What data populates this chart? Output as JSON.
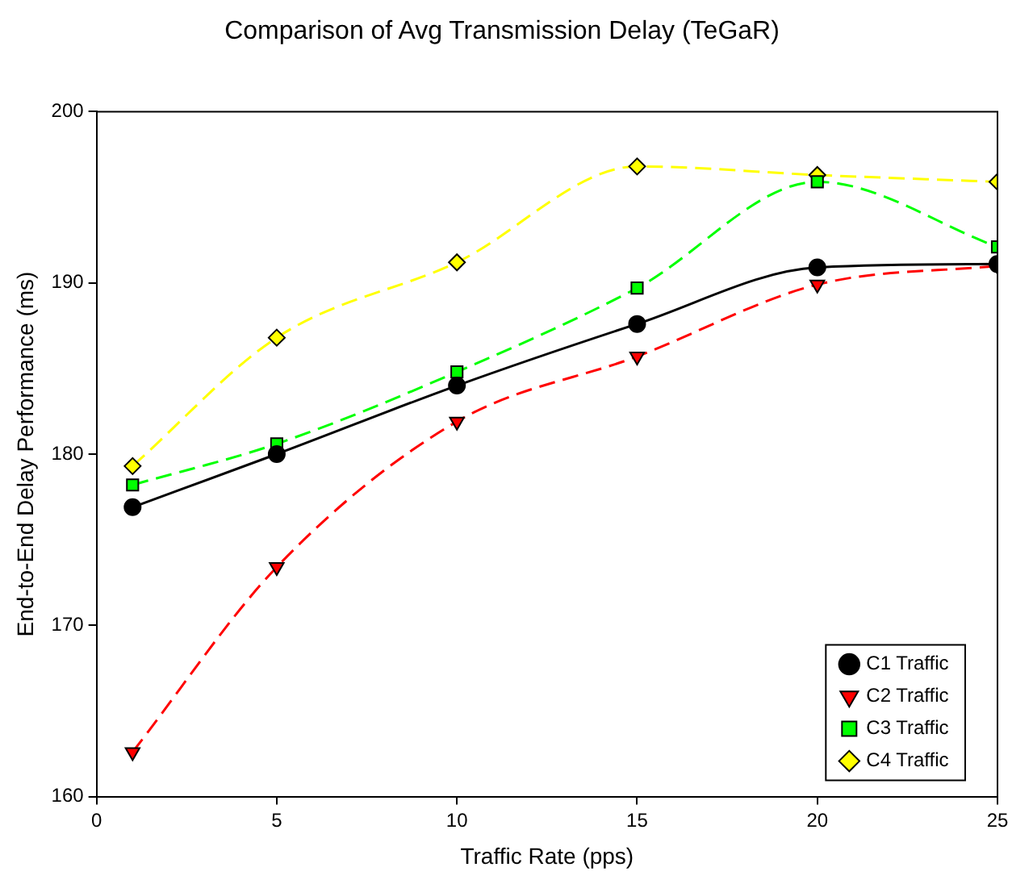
{
  "chart_data": {
    "type": "line",
    "title": "Comparison of Avg Transmission Delay (TeGaR)",
    "xlabel": "Traffic Rate (pps)",
    "ylabel": "End-to-End Delay Performance (ms)",
    "x": [
      1,
      5,
      10,
      15,
      20,
      25
    ],
    "xlim": [
      0,
      25
    ],
    "xticks": [
      0,
      5,
      10,
      15,
      20,
      25
    ],
    "ylim": [
      160,
      200
    ],
    "yticks": [
      160,
      170,
      180,
      190,
      200
    ],
    "grid": false,
    "legend": "bottom right",
    "series": [
      {
        "name": "C1 Traffic",
        "color": "#000000",
        "marker": "circle",
        "line_style": "solid",
        "values": [
          176.9,
          180.0,
          184.0,
          187.6,
          190.9,
          191.1
        ]
      },
      {
        "name": "C2 Traffic",
        "color": "#ff0000",
        "marker": "triangle",
        "line_style": "dashed",
        "values": [
          162.6,
          173.4,
          181.9,
          185.7,
          189.9,
          191.0
        ]
      },
      {
        "name": "C3 Traffic",
        "color": "#00ff00",
        "marker": "square",
        "line_style": "dashed",
        "values": [
          178.2,
          180.6,
          184.8,
          189.7,
          195.9,
          192.1
        ]
      },
      {
        "name": "C4 Traffic",
        "color": "#ffff00",
        "marker": "diamond",
        "line_style": "dashed",
        "values": [
          179.3,
          186.8,
          191.2,
          196.8,
          196.3,
          195.9
        ]
      }
    ]
  }
}
